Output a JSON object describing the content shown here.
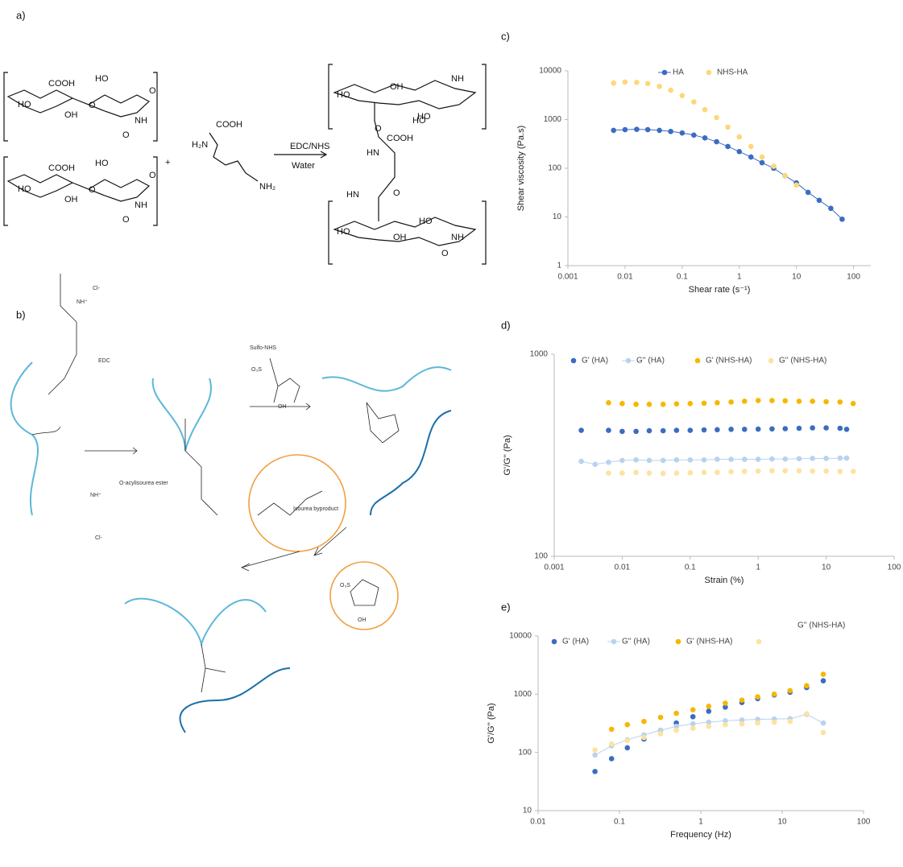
{
  "scheme_a": {
    "label": "a)",
    "texts": [
      "COOH",
      "HO",
      "HO",
      "OH",
      "O",
      "O",
      "NH",
      "O",
      "COOH",
      "HO",
      "HO",
      "OH",
      "O",
      "O",
      "NH",
      "O",
      "+",
      "COOH",
      "H₂N",
      "NH₂",
      "EDC/NHS",
      "Water",
      "HO",
      "OH",
      "HO",
      "NH",
      "HO",
      "O",
      "HN",
      "COOH",
      "HN",
      "O",
      "HO",
      "HO",
      "OH",
      "NH",
      "O"
    ]
  },
  "scheme_b": {
    "label": "b)",
    "texts": [
      "EDC",
      "Cl-",
      "NH⁺",
      "O-acylisourea ester",
      "NH⁺",
      "Cl-",
      "Sulfo-NHS",
      "O₃S",
      "OH",
      "Isourea byproduct",
      "O₃S",
      "OH"
    ]
  },
  "chart_data": [
    {
      "type": "scatter",
      "label": "c)",
      "xlabel": "Shear rate (s⁻¹)",
      "ylabel": "Shear viscosity (Pa.s)",
      "log_x": true,
      "log_y": true,
      "xlim": [
        0.001,
        200
      ],
      "xticks": [
        0.001,
        0.01,
        0.1,
        1,
        10,
        100
      ],
      "ylim": [
        1,
        10000
      ],
      "yticks": [
        1,
        10,
        100,
        1000,
        10000
      ],
      "series": [
        {
          "name": "HA",
          "color": "#3b6cc1",
          "line": true,
          "x": [
            0.0063,
            0.01,
            0.016,
            0.025,
            0.04,
            0.063,
            0.1,
            0.16,
            0.25,
            0.4,
            0.63,
            1,
            1.6,
            2.5,
            4,
            6.3,
            10,
            16,
            25,
            40,
            63
          ],
          "values": [
            600,
            620,
            630,
            620,
            600,
            570,
            530,
            480,
            420,
            350,
            280,
            220,
            170,
            130,
            100,
            70,
            50,
            32,
            22,
            15,
            9
          ]
        },
        {
          "name": "NHS-HA",
          "color": "#fdd878",
          "line": false,
          "x": [
            0.0063,
            0.01,
            0.016,
            0.025,
            0.04,
            0.063,
            0.1,
            0.16,
            0.25,
            0.4,
            0.63,
            1,
            1.6,
            2.5,
            4,
            6.3,
            10
          ],
          "values": [
            5600,
            5900,
            5800,
            5500,
            4800,
            4000,
            3100,
            2300,
            1600,
            1100,
            700,
            440,
            280,
            170,
            110,
            70,
            45
          ]
        }
      ]
    },
    {
      "type": "scatter",
      "label": "d)",
      "xlabel": "Strain (%)",
      "ylabel": "G'/G'' (Pa)",
      "log_x": true,
      "log_y": true,
      "xlim": [
        0.001,
        100
      ],
      "xticks": [
        0.001,
        0.01,
        0.1,
        1,
        10,
        100
      ],
      "ylim": [
        100,
        1000
      ],
      "yticks": [
        100,
        1000
      ],
      "series": [
        {
          "name": "G' (HA)",
          "color": "#3b6cc1",
          "line": false,
          "x": [
            0.0025,
            0.0063,
            0.01,
            0.016,
            0.025,
            0.04,
            0.063,
            0.1,
            0.16,
            0.25,
            0.4,
            0.63,
            1,
            1.6,
            2.5,
            4,
            6.3,
            10,
            16,
            20
          ],
          "values": [
            420,
            420,
            415,
            415,
            418,
            418,
            420,
            420,
            422,
            423,
            425,
            425,
            426,
            427,
            428,
            430,
            432,
            432,
            430,
            425
          ]
        },
        {
          "name": "G'' (HA)",
          "color": "#b8d3ef",
          "line": true,
          "x": [
            0.0025,
            0.004,
            0.0063,
            0.01,
            0.016,
            0.025,
            0.04,
            0.063,
            0.1,
            0.16,
            0.25,
            0.4,
            0.63,
            1,
            1.6,
            2.5,
            4,
            6.3,
            10,
            16,
            20
          ],
          "values": [
            295,
            285,
            292,
            298,
            300,
            298,
            298,
            300,
            300,
            300,
            302,
            302,
            302,
            302,
            303,
            303,
            304,
            305,
            305,
            306,
            306
          ]
        },
        {
          "name": "G' (NHS-HA)",
          "color": "#f5b800",
          "line": false,
          "x": [
            0.0063,
            0.01,
            0.016,
            0.025,
            0.04,
            0.063,
            0.1,
            0.16,
            0.25,
            0.4,
            0.63,
            1,
            1.6,
            2.5,
            4,
            6.3,
            10,
            16,
            25
          ],
          "values": [
            575,
            570,
            565,
            565,
            565,
            568,
            570,
            572,
            575,
            580,
            585,
            590,
            590,
            588,
            585,
            585,
            582,
            580,
            570
          ]
        },
        {
          "name": "G'' (NHS-HA)",
          "color": "#fde2a0",
          "line": false,
          "x": [
            0.0063,
            0.01,
            0.016,
            0.025,
            0.04,
            0.063,
            0.1,
            0.16,
            0.25,
            0.4,
            0.63,
            1,
            1.6,
            2.5,
            4,
            6.3,
            10,
            16,
            25
          ],
          "values": [
            258,
            258,
            260,
            258,
            257,
            258,
            259,
            260,
            260,
            262,
            263,
            264,
            265,
            265,
            265,
            264,
            264,
            263,
            263
          ]
        }
      ]
    },
    {
      "type": "scatter",
      "label": "e)",
      "xlabel": "Frequency (Hz)",
      "ylabel": "G'/G'' (Pa)",
      "log_x": true,
      "log_y": true,
      "xlim": [
        0.01,
        100
      ],
      "xticks": [
        0.01,
        0.1,
        1,
        10,
        100
      ],
      "ylim": [
        10,
        10000
      ],
      "yticks": [
        10,
        100,
        1000,
        10000
      ],
      "series": [
        {
          "name": "G' (HA)",
          "color": "#3b6cc1",
          "line": false,
          "x": [
            0.05,
            0.08,
            0.125,
            0.2,
            0.32,
            0.5,
            0.8,
            1.25,
            2,
            3.2,
            5,
            8,
            12.5,
            20,
            32
          ],
          "values": [
            47,
            78,
            120,
            170,
            240,
            320,
            410,
            510,
            600,
            720,
            840,
            970,
            1080,
            1300,
            1700
          ]
        },
        {
          "name": "G'' (HA)",
          "color": "#b8d3ef",
          "line": true,
          "x": [
            0.05,
            0.08,
            0.125,
            0.2,
            0.32,
            0.5,
            0.8,
            1.25,
            2,
            3.2,
            5,
            8,
            12.5,
            20,
            32
          ],
          "values": [
            90,
            130,
            165,
            200,
            240,
            280,
            310,
            330,
            350,
            360,
            370,
            375,
            380,
            450,
            320
          ]
        },
        {
          "name": "G' (NHS-HA)",
          "color": "#f5b800",
          "line": false,
          "x": [
            0.08,
            0.125,
            0.2,
            0.32,
            0.5,
            0.8,
            1.25,
            2,
            3.2,
            5,
            8,
            12.5,
            20,
            32
          ],
          "values": [
            250,
            300,
            340,
            400,
            470,
            540,
            620,
            700,
            790,
            900,
            1000,
            1150,
            1400,
            2200
          ]
        },
        {
          "name": "G'' (NHS-HA)",
          "color": "#fde2a0",
          "line": false,
          "x": [
            0.05,
            0.08,
            0.125,
            0.2,
            0.32,
            0.5,
            0.8,
            1.25,
            2,
            3.2,
            5,
            8,
            12.5,
            20,
            32
          ],
          "values": [
            110,
            140,
            160,
            180,
            210,
            240,
            260,
            280,
            300,
            310,
            320,
            330,
            340,
            460,
            220
          ]
        }
      ]
    }
  ]
}
